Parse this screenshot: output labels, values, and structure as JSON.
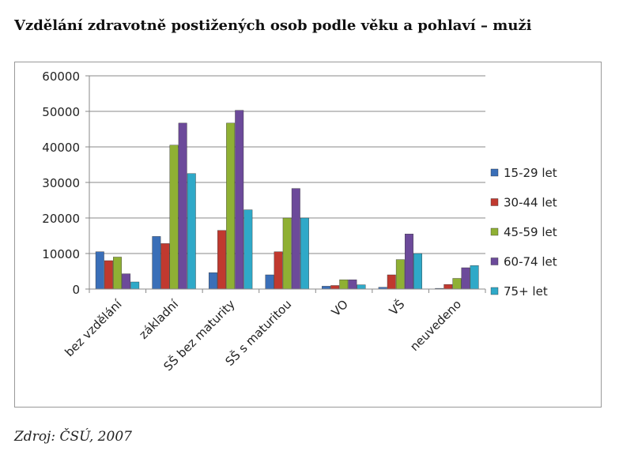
{
  "title": "Vzdělání zdravotně postižených osob podle věku a pohlaví – muži",
  "source": "Zdroj: ČSÚ, 2007",
  "chart_data": {
    "type": "bar",
    "title": "Vzdělání zdravotně postižených osob podle věku a pohlaví – muži",
    "categories": [
      "bez vzdělání",
      "základní",
      "SŠ bez maturity",
      "SŠ s maturitou",
      "VO",
      "VŠ",
      "neuvedeno"
    ],
    "series": [
      {
        "name": "15-29 let",
        "color": "#3a6fb8",
        "values": [
          10500,
          14800,
          4600,
          4000,
          800,
          500,
          200
        ]
      },
      {
        "name": "30-44 let",
        "color": "#c0392f",
        "values": [
          8000,
          12800,
          16500,
          10500,
          1000,
          4000,
          1300
        ]
      },
      {
        "name": "45-59 let",
        "color": "#8fb034",
        "values": [
          9000,
          40500,
          46700,
          20000,
          2600,
          8300,
          3000
        ]
      },
      {
        "name": "60-74 let",
        "color": "#6c4a9a",
        "values": [
          4300,
          46700,
          50300,
          28300,
          2600,
          15500,
          6000
        ]
      },
      {
        "name": "75+ let",
        "color": "#2fa9c8",
        "values": [
          2000,
          32500,
          22300,
          20000,
          1200,
          10000,
          6600
        ]
      }
    ],
    "yticks": [
      0,
      10000,
      20000,
      30000,
      40000,
      50000,
      60000
    ],
    "ylim": [
      0,
      60000
    ],
    "xlabel": "",
    "ylabel": "",
    "grid": true,
    "legend": "right"
  }
}
